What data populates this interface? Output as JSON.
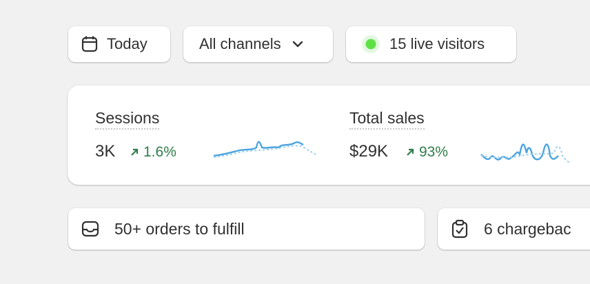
{
  "filters": {
    "date": "Today",
    "channel": "All channels",
    "live": "15 live visitors"
  },
  "metrics": [
    {
      "label": "Sessions",
      "value": "3K",
      "change": "1.6%"
    },
    {
      "label": "Total sales",
      "value": "$29K",
      "change": "93%"
    }
  ],
  "tasks": [
    "50+ orders to fulfill",
    "6 chargebac"
  ]
}
